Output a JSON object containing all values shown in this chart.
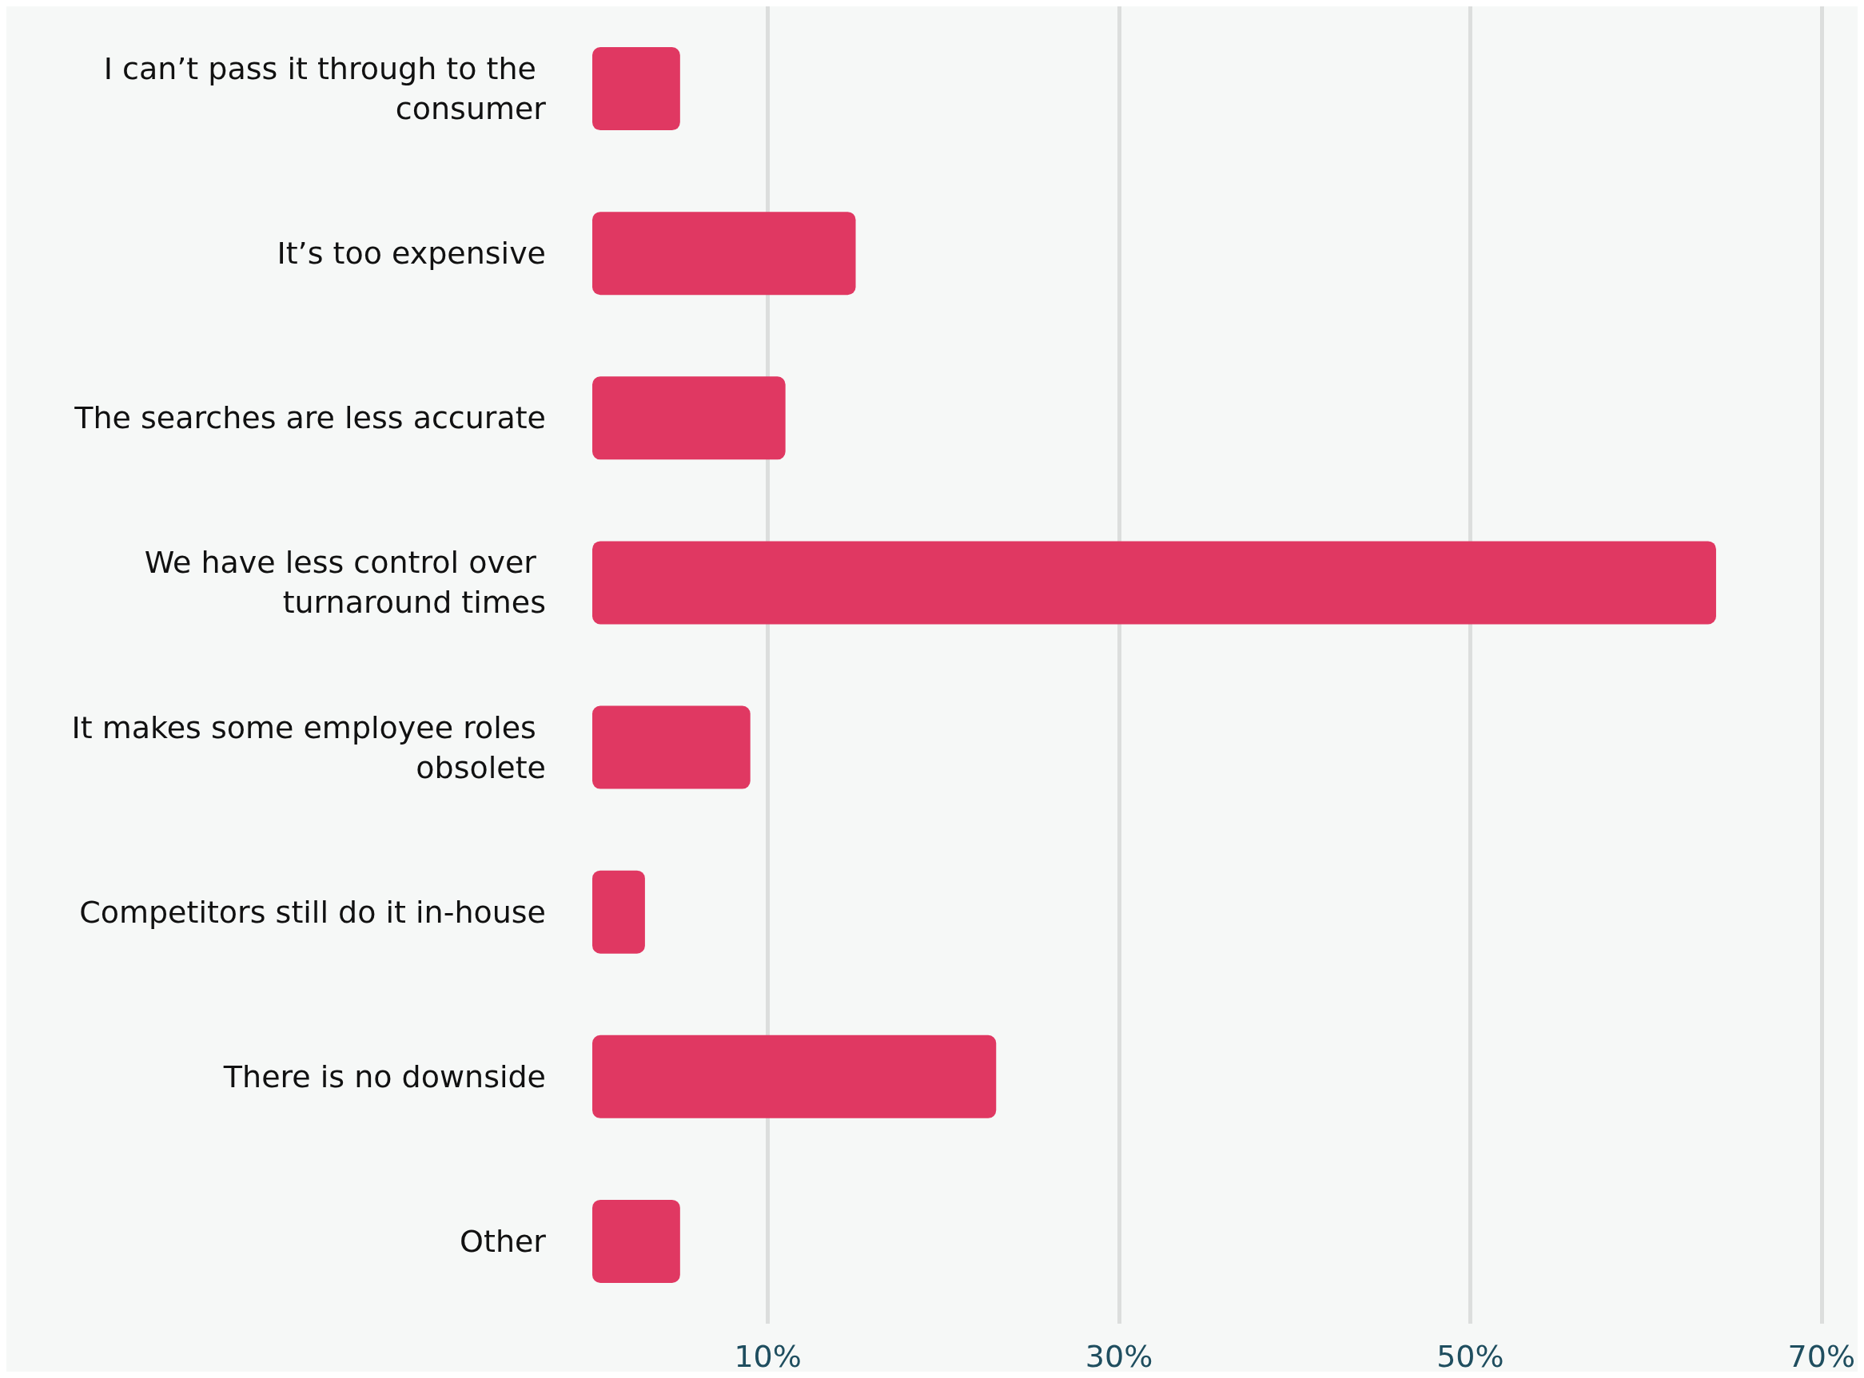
{
  "chart_data": {
    "type": "bar",
    "orientation": "horizontal",
    "categories": [
      "I can’t pass it through to the consumer",
      "It’s too expensive",
      "The searches are less accurate",
      "We have less control over turnaround times",
      "It makes some employee roles obsolete",
      "Competitors still do it in-house",
      "There is no downside",
      "Other"
    ],
    "values": [
      5,
      15,
      11,
      64,
      9,
      3,
      23,
      5
    ],
    "color": "#e03862",
    "xlim": [
      0,
      70
    ],
    "xticks": [
      {
        "value": 10,
        "label": "10%"
      },
      {
        "value": 30,
        "label": "30%"
      },
      {
        "value": 50,
        "label": "50%"
      },
      {
        "value": 70,
        "label": "70%"
      }
    ],
    "grid": "x"
  }
}
